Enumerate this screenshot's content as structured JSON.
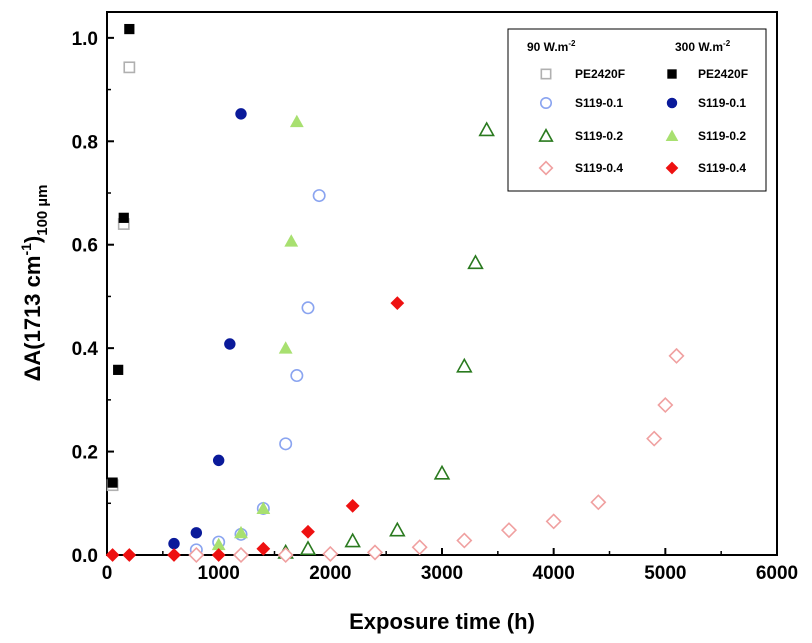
{
  "chart_data": {
    "type": "scatter",
    "xlabel": "Exposure time (h)",
    "ylabel_parts": {
      "main": "ΔA(1713 cm",
      "sup": "-1",
      "close": ")",
      "sub": "100 µm"
    },
    "xlim": [
      0,
      6000
    ],
    "ylim": [
      0,
      1.05
    ],
    "x_ticks": [
      "0",
      "1000",
      "2000",
      "3000",
      "4000",
      "5000",
      "6000"
    ],
    "y_ticks": [
      "0.0",
      "0.2",
      "0.4",
      "0.6",
      "0.8",
      "1.0"
    ],
    "legend": {
      "position": "top-right",
      "col1_header": {
        "main": "90 W.m",
        "sup": "-2"
      },
      "col2_header": {
        "main": "300 W.m",
        "sup": "-2"
      }
    },
    "series": [
      {
        "name": "PE2420F",
        "group": "90 W.m-2",
        "marker": "square",
        "filled": false,
        "color": "#b0b0b0",
        "x": [
          50,
          150,
          200
        ],
        "y": [
          0.135,
          0.64,
          0.943
        ]
      },
      {
        "name": "S119-0.1",
        "group": "90 W.m-2",
        "marker": "circle",
        "filled": false,
        "color": "#8aa4f0",
        "x": [
          800,
          1000,
          1200,
          1400,
          1600,
          1700,
          1800,
          1900
        ],
        "y": [
          0.01,
          0.025,
          0.04,
          0.09,
          0.215,
          0.347,
          0.478,
          0.695
        ]
      },
      {
        "name": "S119-0.2",
        "group": "90 W.m-2",
        "marker": "triangle",
        "filled": false,
        "color": "#2a7a1f",
        "x": [
          1600,
          1800,
          2200,
          2600,
          3000,
          3200,
          3300,
          3400
        ],
        "y": [
          0.005,
          0.012,
          0.027,
          0.048,
          0.158,
          0.365,
          0.565,
          0.822
        ]
      },
      {
        "name": "S119-0.4",
        "group": "90 W.m-2",
        "marker": "diamond",
        "filled": false,
        "color": "#f0a0a0",
        "x": [
          800,
          1200,
          1600,
          2000,
          2400,
          2800,
          3200,
          3600,
          4000,
          4400,
          4900,
          5000,
          5100
        ],
        "y": [
          0.0,
          0.0,
          0.0,
          0.002,
          0.005,
          0.015,
          0.028,
          0.048,
          0.065,
          0.102,
          0.225,
          0.29,
          0.385
        ]
      },
      {
        "name": "PE2420F",
        "group": "300 W.m-2",
        "marker": "square",
        "filled": true,
        "color": "#000000",
        "x": [
          50,
          100,
          150,
          200
        ],
        "y": [
          0.14,
          0.358,
          0.652,
          1.017
        ]
      },
      {
        "name": "S119-0.1",
        "group": "300 W.m-2",
        "marker": "circle",
        "filled": true,
        "color": "#0a1a9a",
        "x": [
          600,
          800,
          1000,
          1100,
          1200
        ],
        "y": [
          0.022,
          0.043,
          0.183,
          0.408,
          0.853
        ]
      },
      {
        "name": "S119-0.2",
        "group": "300 W.m-2",
        "marker": "triangle",
        "filled": true,
        "color": "#a8e070",
        "x": [
          1000,
          1200,
          1400,
          1600,
          1650,
          1700
        ],
        "y": [
          0.02,
          0.043,
          0.09,
          0.4,
          0.607,
          0.838
        ]
      },
      {
        "name": "S119-0.4",
        "group": "300 W.m-2",
        "marker": "diamond",
        "filled": true,
        "color": "#ee1111",
        "x": [
          50,
          200,
          600,
          1000,
          1400,
          1800,
          2200,
          2600
        ],
        "y": [
          0.0,
          0.0,
          0.0,
          0.0,
          0.012,
          0.045,
          0.095,
          0.487
        ]
      }
    ]
  }
}
